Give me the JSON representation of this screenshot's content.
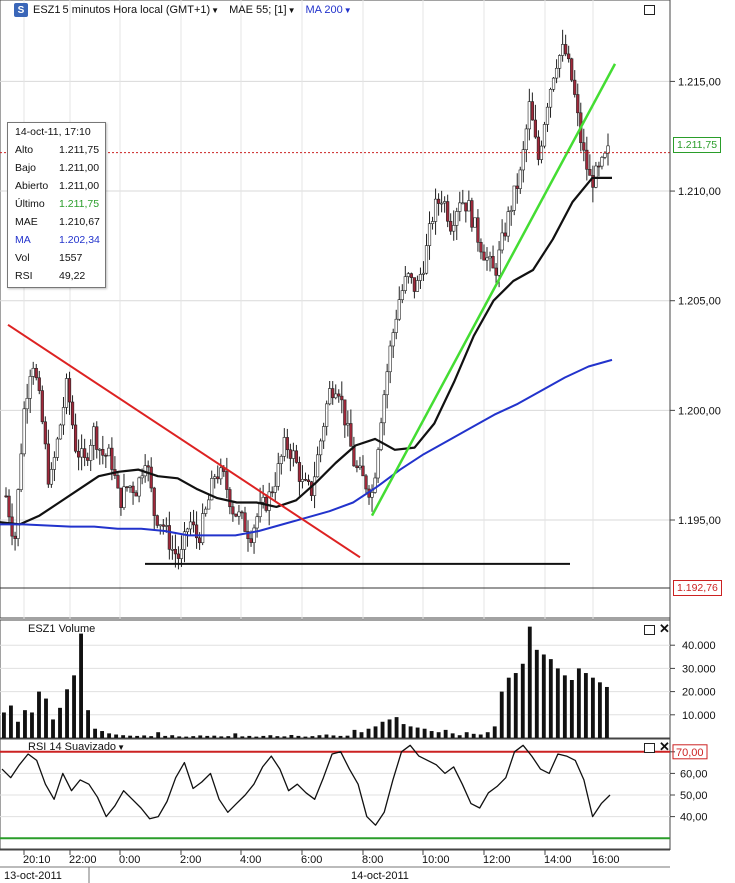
{
  "header": {
    "symbol": "ESZ1",
    "timeframe_label": "5 minutos Hora local (GMT+1)",
    "indicator_1_label": "MAE 55; [1]",
    "indicator_2_label": "MA 200",
    "indicator_2_color": "#2233cc"
  },
  "info_box": {
    "datetime": "14-oct-11, 17:10",
    "rows": [
      {
        "key": "Alto",
        "value": "1.211,75",
        "color": "#111111"
      },
      {
        "key": "Bajo",
        "value": "1.211,00",
        "color": "#111111"
      },
      {
        "key": "Abierto",
        "value": "1.211,00",
        "color": "#111111"
      },
      {
        "key": "Último",
        "value": "1.211,75",
        "color": "#2a9d2a"
      },
      {
        "key": "MAE",
        "value": "1.210,67",
        "color": "#111111"
      },
      {
        "key": "MA",
        "value": "1.202,34",
        "color": "#2233cc"
      },
      {
        "key": "Vol",
        "value": "1557",
        "color": "#111111"
      },
      {
        "key": "RSI",
        "value": "49,22",
        "color": "#111111"
      }
    ]
  },
  "price_labels": {
    "last": "1.211,75",
    "last_color": "#2a9d2a",
    "low": "1.192,76",
    "low_color": "#cc2222"
  },
  "volume_panel": {
    "title": "ESZ1 Volume"
  },
  "rsi_panel": {
    "title": "RSI 14 Suavizado",
    "overbought": "70,00",
    "overbought_color": "#cc2222",
    "oversold_color": "#2a9d2a"
  },
  "time_axis": {
    "ticks": [
      "20:10",
      "22:00",
      "0:00",
      "2:00",
      "4:00",
      "6:00",
      "8:00",
      "10:00",
      "12:00",
      "14:00",
      "16:00"
    ],
    "dates": [
      "13-oct-2011",
      "14-oct-2011"
    ]
  },
  "chart_data": [
    {
      "type": "candlestick",
      "title": "",
      "y_ticks": [
        "1.215,00",
        "1.210,00",
        "1.205,00",
        "1.200,00",
        "1.195,00"
      ],
      "y_tick_values": [
        1215,
        1210,
        1205,
        1200,
        1195
      ],
      "ylim": [
        1191.9,
        1217.8
      ],
      "series": [
        {
          "name": "MAE 55; [1]",
          "color": "#111111"
        },
        {
          "name": "MA 200",
          "color": "#2233cc"
        }
      ],
      "price_path": [
        1196.1,
        1194.0,
        1199.8,
        1202.5,
        1200.0,
        1196.5,
        1198.8,
        1201.2,
        1198.3,
        1197.6,
        1199.1,
        1198.0,
        1197.9,
        1195.8,
        1196.6,
        1196.4,
        1198.0,
        1195.3,
        1194.8,
        1193.7,
        1193.2,
        1195.0,
        1194.1,
        1195.5,
        1197.2,
        1196.9,
        1195.5,
        1195.0,
        1194.3,
        1195.4,
        1195.9,
        1197.0,
        1198.5,
        1197.9,
        1196.6,
        1196.3,
        1198.5,
        1200.8,
        1201.3,
        1199.3,
        1197.4,
        1196.8,
        1196.2,
        1199.8,
        1202.7,
        1205.0,
        1206.1,
        1205.5,
        1206.9,
        1209.1,
        1209.8,
        1208.5,
        1209.7,
        1209.3,
        1208.0,
        1207.0,
        1206.2,
        1207.9,
        1209.5,
        1210.8,
        1213.9,
        1211.4,
        1214.0,
        1215.9,
        1216.5,
        1214.8,
        1212.0,
        1210.4,
        1210.9,
        1211.75
      ],
      "ema55": [
        1194.9,
        1194.8,
        1195.2,
        1195.8,
        1196.4,
        1197.0,
        1197.2,
        1197.3,
        1197.0,
        1196.9,
        1196.4,
        1196.0,
        1195.8,
        1195.8,
        1195.6,
        1195.9,
        1196.7,
        1197.6,
        1198.4,
        1198.7,
        1198.2,
        1198.3,
        1199.4,
        1201.3,
        1203.4,
        1205.0,
        1205.9,
        1206.4,
        1207.8,
        1209.5,
        1210.6,
        1210.6
      ],
      "ma200": [
        1194.8,
        1194.8,
        1194.75,
        1194.7,
        1194.7,
        1194.6,
        1194.6,
        1194.5,
        1194.3,
        1194.3,
        1194.3,
        1194.5,
        1194.8,
        1195.1,
        1195.4,
        1195.8,
        1196.5,
        1197.3,
        1198.0,
        1198.6,
        1199.2,
        1199.8,
        1200.3,
        1200.9,
        1201.5,
        1202.0,
        1202.3
      ],
      "trendlines": [
        {
          "name": "resistance",
          "color": "#dd2222",
          "from": [
            1203.9
          ],
          "to": [
            1193.3
          ]
        },
        {
          "name": "support",
          "color": "#111111",
          "value": 1193.0
        },
        {
          "name": "uptrend",
          "color": "#44dd33",
          "from": [
            1195.2
          ],
          "to": [
            1215.8
          ]
        }
      ],
      "reference_lines": [
        {
          "name": "last-price",
          "value": 1211.75,
          "style": "dotted",
          "color": "#cc2222"
        }
      ]
    },
    {
      "type": "bar",
      "title": "ESZ1 Volume",
      "y_ticks": [
        "40.000",
        "30.000",
        "20.000",
        "10.000"
      ],
      "y_tick_values": [
        40000,
        30000,
        20000,
        10000
      ],
      "ylim": [
        0,
        50000
      ],
      "values": [
        11000,
        14000,
        7000,
        12000,
        11000,
        20000,
        17000,
        8000,
        13000,
        21000,
        27000,
        45000,
        12000,
        4000,
        3000,
        2000,
        1500,
        1200,
        1000,
        900,
        1100,
        800,
        2500,
        900,
        1200,
        700,
        600,
        800,
        1100,
        900,
        1000,
        700,
        800,
        2000,
        700,
        900,
        600,
        900,
        1200,
        800,
        700,
        1300,
        900,
        600,
        800,
        1200,
        1500,
        1100,
        900,
        1000,
        3500,
        2500,
        4000,
        5000,
        7000,
        8000,
        9000,
        6000,
        5000,
        4500,
        4000,
        3000,
        2500,
        3500,
        2000,
        1200,
        2500,
        1800,
        1500,
        2500,
        5000,
        20000,
        26000,
        28000,
        32000,
        48000,
        38000,
        36000,
        34000,
        30000,
        27000,
        25000,
        30000,
        28000,
        26000,
        24000,
        22000
      ],
      "series": [
        {
          "name": "ESZ1 Volume",
          "color": "#111111"
        }
      ]
    },
    {
      "type": "line",
      "title": "RSI 14 Suavizado",
      "y_ticks": [
        "70,00",
        "60,00",
        "50,00",
        "40,00"
      ],
      "y_tick_values": [
        70,
        60,
        50,
        40
      ],
      "ylim": [
        25,
        75
      ],
      "values": [
        62,
        58,
        64,
        69,
        66,
        55,
        48,
        60,
        52,
        57,
        55,
        49,
        40,
        45,
        52,
        48,
        44,
        39,
        40,
        47,
        58,
        65,
        53,
        56,
        60,
        48,
        42,
        46,
        50,
        55,
        63,
        68,
        62,
        52,
        55,
        51,
        48,
        58,
        69,
        70,
        62,
        55,
        40,
        36,
        42,
        57,
        70,
        73,
        68,
        66,
        64,
        60,
        63,
        55,
        46,
        44,
        51,
        54,
        58,
        70,
        73,
        68,
        62,
        60,
        69,
        68,
        66,
        57,
        40,
        46,
        50
      ],
      "series": [
        {
          "name": "RSI 14 Suavizado",
          "color": "#111111"
        }
      ],
      "reference_lines": [
        {
          "name": "overbought",
          "value": 70,
          "color": "#cc2222"
        },
        {
          "name": "oversold",
          "value": 30,
          "color": "#2a9d2a"
        }
      ]
    }
  ]
}
